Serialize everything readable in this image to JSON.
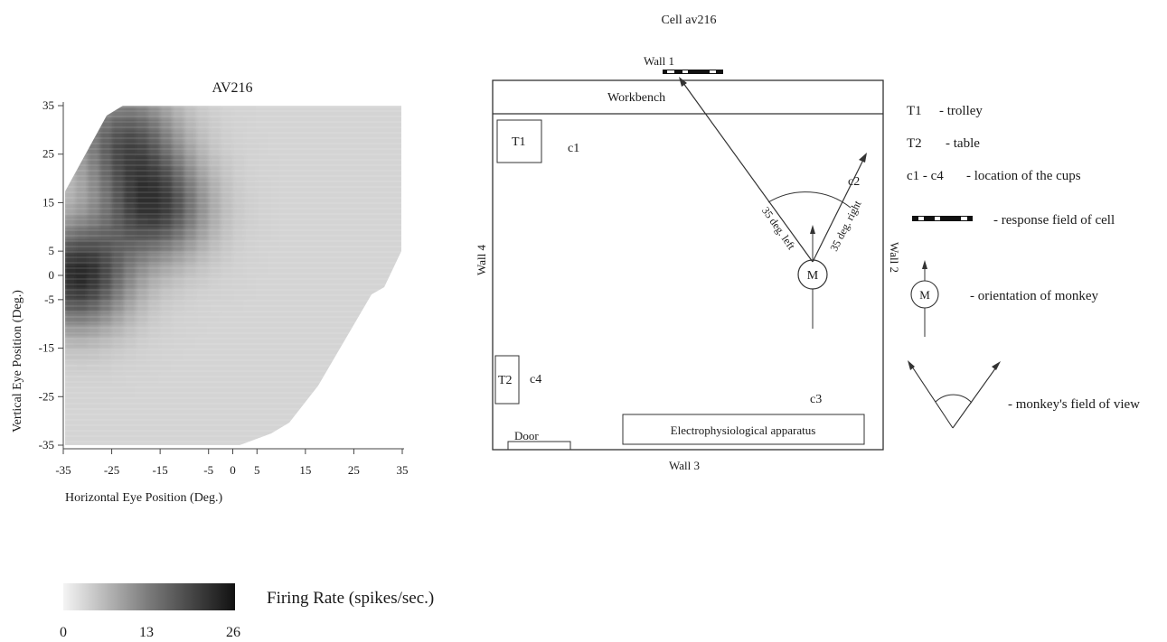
{
  "heatmap": {
    "title": "AV216",
    "xlabel": "Horizontal Eye Position (Deg.)",
    "ylabel": "Vertical Eye Position (Deg.)",
    "x_ticks": [
      "-35",
      "-25",
      "-15",
      "-5",
      "0",
      "5",
      "15",
      "25",
      "35"
    ],
    "y_ticks": [
      "35",
      "25",
      "15",
      "5",
      "0",
      "-5",
      "-15",
      "-25",
      "-35"
    ],
    "colorbar_title": "Firing Rate (spikes/sec.)",
    "colorbar_ticks": [
      "0",
      "13",
      "26"
    ]
  },
  "chart_data": {
    "type": "heatmap",
    "title": "AV216",
    "xlabel": "Horizontal Eye Position (Deg.)",
    "ylabel": "Vertical Eye Position (Deg.)",
    "xlim": [
      -35,
      35
    ],
    "ylim": [
      -35,
      35
    ],
    "x_ticks": [
      -35,
      -25,
      -15,
      -5,
      0,
      5,
      15,
      25,
      35
    ],
    "y_ticks": [
      35,
      25,
      15,
      5,
      0,
      -5,
      -15,
      -25,
      -35
    ],
    "colorbar": {
      "label": "Firing Rate (spikes/sec.)",
      "min": 0,
      "max": 26,
      "ticks": [
        0,
        13,
        26
      ]
    },
    "peaks": [
      {
        "x": -32,
        "y": 0,
        "rate": 24
      },
      {
        "x": -16,
        "y": 14,
        "rate": 21
      },
      {
        "x": -22,
        "y": 28,
        "rate": 18
      }
    ],
    "background_rate": 3
  },
  "room": {
    "title": "Cell av216",
    "wall1": "Wall 1",
    "wall2": "Wall 2",
    "wall3": "Wall 3",
    "wall4": "Wall 4",
    "workbench": "Workbench",
    "t1": "T1",
    "t2": "T2",
    "c1": "c1",
    "c2": "c2",
    "c3": "c3",
    "c4": "c4",
    "door": "Door",
    "apparatus": "Electrophysiological apparatus",
    "monkey": "M",
    "left_angle": "35 deg. left",
    "right_angle": "35 deg. right"
  },
  "legend": {
    "t1_key": "T1",
    "t1_desc": "- trolley",
    "t2_key": "T2",
    "t2_desc": "- table",
    "cups_key": "c1 - c4",
    "cups_desc": "- location of the cups",
    "field_desc": "- response field of cell",
    "monkey_symbol": "M",
    "orientation_desc": "- orientation of monkey",
    "fov_desc": "- monkey's field of view"
  }
}
